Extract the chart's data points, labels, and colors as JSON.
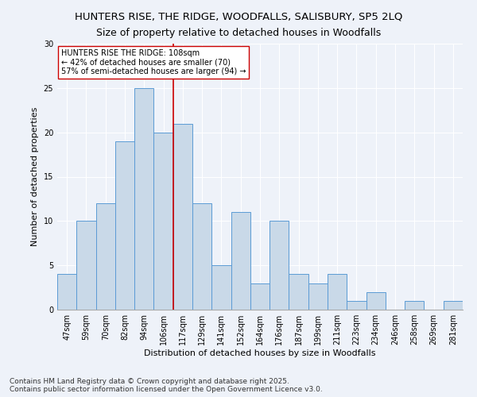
{
  "title_line1": "HUNTERS RISE, THE RIDGE, WOODFALLS, SALISBURY, SP5 2LQ",
  "title_line2": "Size of property relative to detached houses in Woodfalls",
  "xlabel": "Distribution of detached houses by size in Woodfalls",
  "ylabel": "Number of detached properties",
  "categories": [
    "47sqm",
    "59sqm",
    "70sqm",
    "82sqm",
    "94sqm",
    "106sqm",
    "117sqm",
    "129sqm",
    "141sqm",
    "152sqm",
    "164sqm",
    "176sqm",
    "187sqm",
    "199sqm",
    "211sqm",
    "223sqm",
    "234sqm",
    "246sqm",
    "258sqm",
    "269sqm",
    "281sqm"
  ],
  "values": [
    4,
    10,
    12,
    19,
    25,
    20,
    21,
    12,
    5,
    11,
    3,
    10,
    4,
    3,
    4,
    1,
    2,
    0,
    1,
    0,
    1
  ],
  "bar_color": "#c9d9e8",
  "bar_edge_color": "#5b9bd5",
  "vline_color": "#cc0000",
  "vline_x": 5.5,
  "annotation_text": "HUNTERS RISE THE RIDGE: 108sqm\n← 42% of detached houses are smaller (70)\n57% of semi-detached houses are larger (94) →",
  "annotation_box_color": "#ffffff",
  "annotation_box_edge": "#cc0000",
  "ylim": [
    0,
    30
  ],
  "yticks": [
    0,
    5,
    10,
    15,
    20,
    25,
    30
  ],
  "footnote": "Contains HM Land Registry data © Crown copyright and database right 2025.\nContains public sector information licensed under the Open Government Licence v3.0.",
  "bg_color": "#eef2f9",
  "plot_bg_color": "#eef2f9",
  "title_fontsize": 9.5,
  "axis_label_fontsize": 8,
  "tick_fontsize": 7,
  "annotation_fontsize": 7,
  "footnote_fontsize": 6.5
}
